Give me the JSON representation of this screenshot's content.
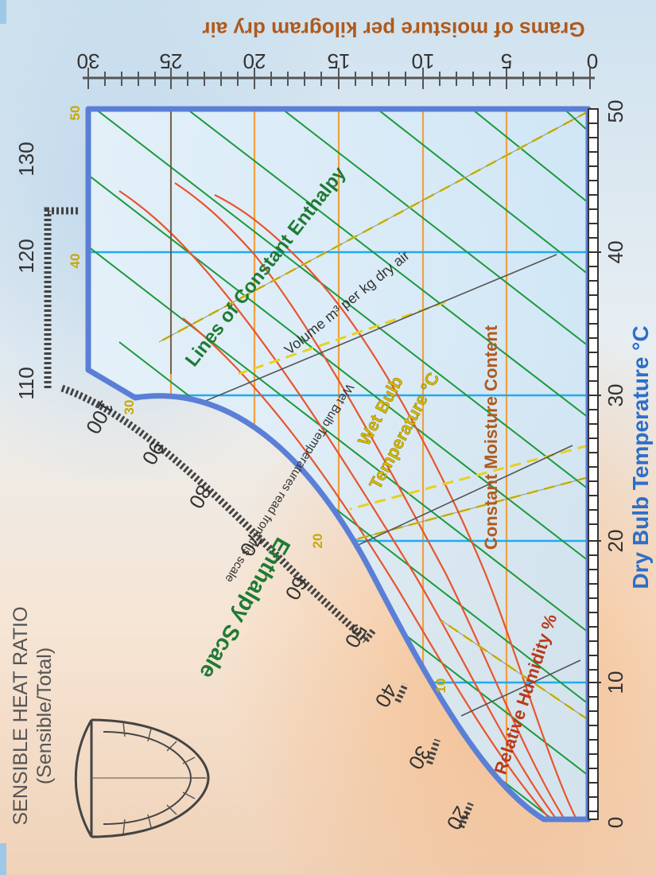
{
  "sensible_heat_ratio": {
    "title": "SENSIBLE HEAT RATIO",
    "subtitle": "(Sensible/Total)"
  },
  "moisture_axis": {
    "title": "Grams of moisture per kilogram dry air",
    "ticks": [
      "0",
      "5",
      "10",
      "15",
      "20",
      "25",
      "30"
    ]
  },
  "dry_bulb_axis": {
    "title": "Dry Bulb Temperature °C",
    "ticks": [
      "0",
      "10",
      "20",
      "30",
      "40",
      "50"
    ]
  },
  "enthalpy_scale": {
    "title": "Enthalpy Scale",
    "ticks": [
      "20",
      "30",
      "40",
      "50",
      "60",
      "70",
      "80",
      "90",
      "100",
      "110",
      "120",
      "130"
    ]
  },
  "wet_bulb_ticks": [
    "10",
    "20",
    "30",
    "40",
    "50"
  ],
  "labels": {
    "enthalpy_lines": "Lines of Constant Enthalpy",
    "volume": "Volume m³ per kg dry air",
    "wet_bulb_1": "Wet Bulb",
    "wet_bulb_2": "Temperature °C",
    "wet_bulb_read": "Wet Bulb Temperatures read from this scale",
    "moisture_content": "Constant Moisture Content",
    "relative_humidity": "Relative Humidity %"
  },
  "colors": {
    "border": "#5b7fd6",
    "enthalpy_line": "#1a9a3a",
    "rh_line": "#e8552e",
    "moisture_line": "#f0a040",
    "wet_bulb_line": "#e8d020",
    "dry_bulb_line": "#22aaee",
    "volume_line": "#555555",
    "moisture_text": "#b05a1c",
    "enthalpy_text": "#1f7a34",
    "dry_bulb_text": "#2c6fc8",
    "wet_bulb_text": "#c8a800"
  }
}
